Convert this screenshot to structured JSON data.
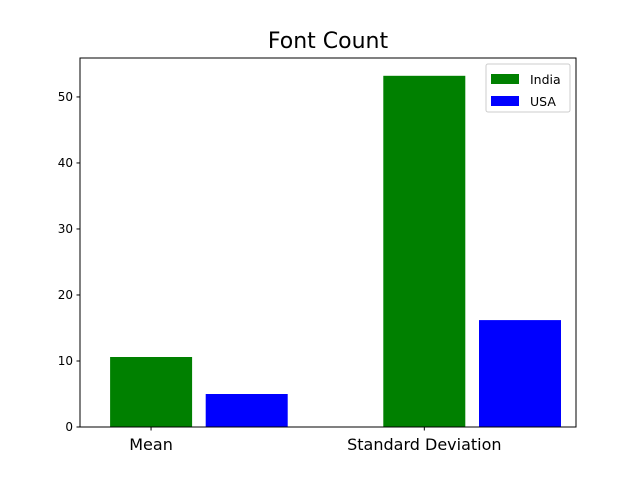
{
  "chart_data": {
    "type": "bar",
    "title": "Font Count",
    "xlabel": "",
    "ylabel": "",
    "categories": [
      "Mean",
      "Standard Deviation"
    ],
    "series": [
      {
        "name": "India",
        "color": "#008000",
        "values": [
          10.6,
          53.2
        ]
      },
      {
        "name": "USA",
        "color": "#0000ff",
        "values": [
          5.0,
          16.2
        ]
      }
    ],
    "ylim": [
      0,
      55.9
    ],
    "yticks": [
      0,
      10,
      20,
      30,
      40,
      50
    ],
    "legend_position": "top-right",
    "grid": false
  }
}
